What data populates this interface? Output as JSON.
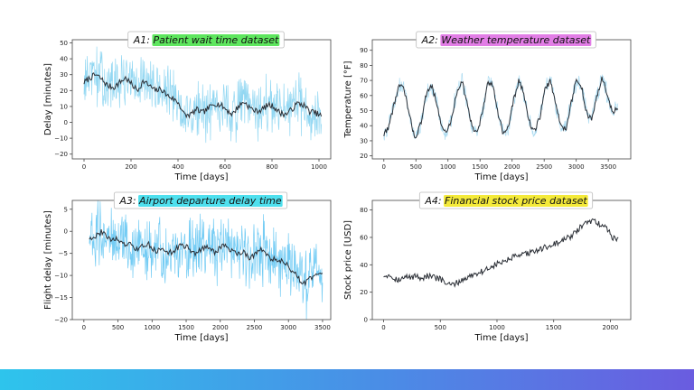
{
  "chart_data": [
    {
      "id": "A1",
      "type": "line",
      "title_prefix": "A1:",
      "title": "Patient wait time dataset",
      "title_highlight": "#5ee65e",
      "xlabel": "Time [days]",
      "ylabel": "Delay [minutes]",
      "xlim": [
        -50,
        1050
      ],
      "ylim": [
        -23,
        52
      ],
      "xticks": [
        0,
        200,
        400,
        600,
        800,
        1000
      ],
      "yticks": [
        -20,
        -10,
        0,
        10,
        20,
        30,
        40,
        50
      ],
      "noise_color": "#7fd0f0",
      "series": [
        {
          "name": "raw",
          "x_start": 0,
          "x_end": 1010,
          "noise_amp": 22,
          "values": [
            25,
            28,
            30,
            27,
            23,
            22,
            25,
            28,
            24,
            20,
            26,
            23,
            20,
            21,
            17,
            15,
            12,
            4,
            5,
            8,
            6,
            9,
            12,
            11,
            8,
            5,
            10,
            13,
            9,
            7,
            8,
            11,
            10,
            6,
            5,
            8,
            12,
            11,
            7,
            6,
            4
          ]
        },
        {
          "name": "smoothed",
          "x_start": 0,
          "x_end": 1010,
          "values": [
            25,
            28,
            30,
            27,
            23,
            22,
            25,
            28,
            24,
            20,
            26,
            23,
            20,
            21,
            17,
            15,
            12,
            4,
            5,
            8,
            6,
            9,
            12,
            11,
            8,
            5,
            10,
            13,
            9,
            7,
            8,
            11,
            10,
            6,
            5,
            8,
            12,
            11,
            7,
            6,
            4
          ]
        }
      ]
    },
    {
      "id": "A2",
      "type": "line",
      "title_prefix": "A2:",
      "title": "Weather temperature dataset",
      "title_highlight": "#e27ee6",
      "xlabel": "Time [days]",
      "ylabel": "Temperature [°F]",
      "xlim": [
        -180,
        3850
      ],
      "ylim": [
        18,
        97
      ],
      "xticks": [
        0,
        500,
        1000,
        1500,
        2000,
        2500,
        3000,
        3500
      ],
      "yticks": [
        20,
        30,
        40,
        50,
        60,
        70,
        80,
        90
      ],
      "noise_color": "#9fd6ef",
      "series": [
        {
          "name": "raw",
          "x_start": 0,
          "x_end": 3650,
          "noise_amp": 7,
          "values": [
            34,
            40,
            55,
            67,
            63,
            45,
            32,
            40,
            58,
            68,
            58,
            40,
            35,
            44,
            62,
            70,
            55,
            38,
            36,
            50,
            68,
            67,
            48,
            34,
            40,
            58,
            70,
            60,
            42,
            36,
            46,
            64,
            70,
            55,
            40,
            38,
            55,
            70,
            66,
            48,
            44,
            60,
            72,
            60,
            48,
            52
          ]
        },
        {
          "name": "smoothed",
          "x_start": 0,
          "x_end": 3650,
          "values": [
            34,
            40,
            55,
            67,
            63,
            45,
            32,
            40,
            58,
            68,
            58,
            40,
            35,
            44,
            62,
            70,
            55,
            38,
            36,
            50,
            68,
            67,
            48,
            34,
            40,
            58,
            70,
            60,
            42,
            36,
            46,
            64,
            70,
            55,
            40,
            38,
            55,
            70,
            66,
            48,
            44,
            60,
            72,
            60,
            48,
            52
          ]
        }
      ]
    },
    {
      "id": "A3",
      "type": "line",
      "title_prefix": "A3:",
      "title": "Airport departure delay time",
      "title_highlight": "#4fe0ee",
      "xlabel": "Time [days]",
      "ylabel": "Flight delay [minutes]",
      "xlim": [
        -170,
        3620
      ],
      "ylim": [
        -20,
        7
      ],
      "xticks": [
        0,
        500,
        1000,
        1500,
        2000,
        2500,
        3000,
        3500
      ],
      "yticks": [
        -20,
        -15,
        -10,
        -5,
        0,
        5
      ],
      "noise_color": "#5cc3f2",
      "series": [
        {
          "name": "raw",
          "x_start": 80,
          "x_end": 3500,
          "noise_amp": 9,
          "values": [
            -1.5,
            -1,
            0,
            -2,
            -1.5,
            -3,
            -3,
            -4,
            -3.5,
            -3,
            -4.5,
            -4,
            -5,
            -4,
            -3,
            -4,
            -5,
            -4,
            -3.5,
            -5,
            -3,
            -4,
            -5,
            -4.5,
            -6,
            -5,
            -4,
            -6,
            -6.5,
            -7,
            -8,
            -10,
            -12,
            -11,
            -10,
            -9.5
          ]
        },
        {
          "name": "smoothed",
          "x_start": 80,
          "x_end": 3500,
          "values": [
            -1.5,
            -1,
            0,
            -2,
            -1.5,
            -3,
            -3,
            -4,
            -3.5,
            -3,
            -4.5,
            -4,
            -5,
            -4,
            -3,
            -4,
            -5,
            -4,
            -3.5,
            -5,
            -3,
            -4,
            -5,
            -4.5,
            -6,
            -5,
            -4,
            -6,
            -6.5,
            -7,
            -8,
            -10,
            -12,
            -11,
            -10,
            -9.5
          ]
        }
      ]
    },
    {
      "id": "A4",
      "type": "line",
      "title_prefix": "A4:",
      "title": "Financial stock price dataset",
      "title_highlight": "#f4ea3a",
      "xlabel": "Time [days]",
      "ylabel": "Stock price [USD]",
      "xlim": [
        -100,
        2180
      ],
      "ylim": [
        0,
        87
      ],
      "xticks": [
        0,
        500,
        1000,
        1500,
        2000
      ],
      "yticks": [
        0,
        20,
        40,
        60,
        80
      ],
      "noise_color": "#9fd6ef",
      "series": [
        {
          "name": "price",
          "x_start": 0,
          "x_end": 2070,
          "values": [
            32,
            33,
            30,
            29,
            31,
            31,
            32,
            30,
            32,
            31,
            30,
            28,
            25,
            26,
            28,
            30,
            32,
            34,
            35,
            37,
            39,
            41,
            42,
            44,
            46,
            46,
            48,
            49,
            50,
            52,
            53,
            55,
            56,
            58,
            60,
            63,
            67,
            70,
            72,
            71,
            69,
            66,
            60,
            59
          ]
        }
      ]
    }
  ]
}
